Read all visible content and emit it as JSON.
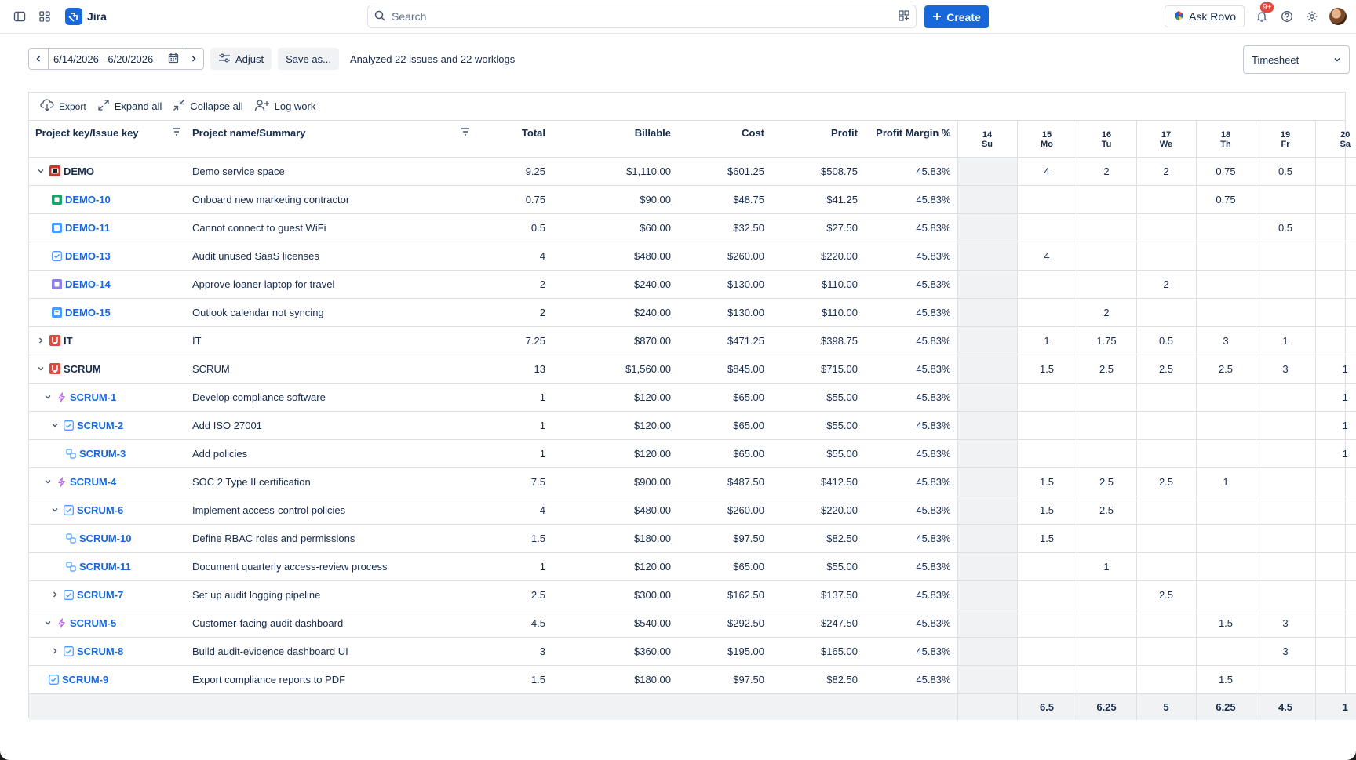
{
  "app": {
    "name": "Jira"
  },
  "search": {
    "placeholder": "Search"
  },
  "nav": {
    "create_label": "Create",
    "rovo_label": "Ask Rovo",
    "notif_badge": "9+"
  },
  "toolbar": {
    "date_range": "6/14/2026 - 6/20/2026",
    "adjust_label": "Adjust",
    "save_label": "Save as...",
    "status": "Analyzed 22 issues and 22 worklogs",
    "view_value": "Timesheet"
  },
  "grid_tools": {
    "export": "Export",
    "expand": "Expand all",
    "collapse": "Collapse all",
    "log": "Log work"
  },
  "columns": {
    "key": "Project key/Issue key",
    "name": "Project name/Summary",
    "total": "Total",
    "billable": "Billable",
    "cost": "Cost",
    "profit": "Profit",
    "margin": "Profit Margin %",
    "days": [
      {
        "num": "14",
        "dow": "Su"
      },
      {
        "num": "15",
        "dow": "Mo"
      },
      {
        "num": "16",
        "dow": "Tu"
      },
      {
        "num": "17",
        "dow": "We"
      },
      {
        "num": "18",
        "dow": "Th"
      },
      {
        "num": "19",
        "dow": "Fr"
      },
      {
        "num": "20",
        "dow": "Sa"
      }
    ]
  },
  "rows": [
    {
      "key": "DEMO",
      "name": "Demo service space",
      "total": "9.25",
      "billable": "$1,110.00",
      "cost": "$601.25",
      "profit": "$508.75",
      "margin": "45.83%",
      "days": [
        "",
        "4",
        "2",
        "2",
        "0.75",
        "0.5",
        ""
      ]
    },
    {
      "key": "DEMO-10",
      "name": "Onboard new marketing contractor",
      "total": "0.75",
      "billable": "$90.00",
      "cost": "$48.75",
      "profit": "$41.25",
      "margin": "45.83%",
      "days": [
        "",
        "",
        "",
        "",
        "0.75",
        "",
        ""
      ]
    },
    {
      "key": "DEMO-11",
      "name": "Cannot connect to guest WiFi",
      "total": "0.5",
      "billable": "$60.00",
      "cost": "$32.50",
      "profit": "$27.50",
      "margin": "45.83%",
      "days": [
        "",
        "",
        "",
        "",
        "",
        "0.5",
        ""
      ]
    },
    {
      "key": "DEMO-13",
      "name": "Audit unused SaaS licenses",
      "total": "4",
      "billable": "$480.00",
      "cost": "$260.00",
      "profit": "$220.00",
      "margin": "45.83%",
      "days": [
        "",
        "4",
        "",
        "",
        "",
        "",
        ""
      ]
    },
    {
      "key": "DEMO-14",
      "name": "Approve loaner laptop for travel",
      "total": "2",
      "billable": "$240.00",
      "cost": "$130.00",
      "profit": "$110.00",
      "margin": "45.83%",
      "days": [
        "",
        "",
        "",
        "2",
        "",
        "",
        ""
      ]
    },
    {
      "key": "DEMO-15",
      "name": "Outlook calendar not syncing",
      "total": "2",
      "billable": "$240.00",
      "cost": "$130.00",
      "profit": "$110.00",
      "margin": "45.83%",
      "days": [
        "",
        "",
        "2",
        "",
        "",
        "",
        ""
      ]
    },
    {
      "key": "IT",
      "name": "IT",
      "total": "7.25",
      "billable": "$870.00",
      "cost": "$471.25",
      "profit": "$398.75",
      "margin": "45.83%",
      "days": [
        "",
        "1",
        "1.75",
        "0.5",
        "3",
        "1",
        ""
      ]
    },
    {
      "key": "SCRUM",
      "name": "SCRUM",
      "total": "13",
      "billable": "$1,560.00",
      "cost": "$845.00",
      "profit": "$715.00",
      "margin": "45.83%",
      "days": [
        "",
        "1.5",
        "2.5",
        "2.5",
        "2.5",
        "3",
        "1"
      ]
    },
    {
      "key": "SCRUM-1",
      "name": "Develop compliance software",
      "total": "1",
      "billable": "$120.00",
      "cost": "$65.00",
      "profit": "$55.00",
      "margin": "45.83%",
      "days": [
        "",
        "",
        "",
        "",
        "",
        "",
        "1"
      ]
    },
    {
      "key": "SCRUM-2",
      "name": "Add ISO 27001",
      "total": "1",
      "billable": "$120.00",
      "cost": "$65.00",
      "profit": "$55.00",
      "margin": "45.83%",
      "days": [
        "",
        "",
        "",
        "",
        "",
        "",
        "1"
      ]
    },
    {
      "key": "SCRUM-3",
      "name": "Add policies",
      "total": "1",
      "billable": "$120.00",
      "cost": "$65.00",
      "profit": "$55.00",
      "margin": "45.83%",
      "days": [
        "",
        "",
        "",
        "",
        "",
        "",
        "1"
      ]
    },
    {
      "key": "SCRUM-4",
      "name": "SOC 2 Type II certification",
      "total": "7.5",
      "billable": "$900.00",
      "cost": "$487.50",
      "profit": "$412.50",
      "margin": "45.83%",
      "days": [
        "",
        "1.5",
        "2.5",
        "2.5",
        "1",
        "",
        ""
      ]
    },
    {
      "key": "SCRUM-6",
      "name": "Implement access-control policies",
      "total": "4",
      "billable": "$480.00",
      "cost": "$260.00",
      "profit": "$220.00",
      "margin": "45.83%",
      "days": [
        "",
        "1.5",
        "2.5",
        "",
        "",
        "",
        ""
      ]
    },
    {
      "key": "SCRUM-10",
      "name": "Define RBAC roles and permissions",
      "total": "1.5",
      "billable": "$180.00",
      "cost": "$97.50",
      "profit": "$82.50",
      "margin": "45.83%",
      "days": [
        "",
        "1.5",
        "",
        "",
        "",
        "",
        ""
      ]
    },
    {
      "key": "SCRUM-11",
      "name": "Document quarterly access-review process",
      "total": "1",
      "billable": "$120.00",
      "cost": "$65.00",
      "profit": "$55.00",
      "margin": "45.83%",
      "days": [
        "",
        "",
        "1",
        "",
        "",
        "",
        ""
      ]
    },
    {
      "key": "SCRUM-7",
      "name": "Set up audit logging pipeline",
      "total": "2.5",
      "billable": "$300.00",
      "cost": "$162.50",
      "profit": "$137.50",
      "margin": "45.83%",
      "days": [
        "",
        "",
        "",
        "2.5",
        "",
        "",
        ""
      ]
    },
    {
      "key": "SCRUM-5",
      "name": "Customer-facing audit dashboard",
      "total": "4.5",
      "billable": "$540.00",
      "cost": "$292.50",
      "profit": "$247.50",
      "margin": "45.83%",
      "days": [
        "",
        "",
        "",
        "",
        "1.5",
        "3",
        ""
      ]
    },
    {
      "key": "SCRUM-8",
      "name": "Build audit-evidence dashboard UI",
      "total": "3",
      "billable": "$360.00",
      "cost": "$195.00",
      "profit": "$165.00",
      "margin": "45.83%",
      "days": [
        "",
        "",
        "",
        "",
        "",
        "3",
        ""
      ]
    },
    {
      "key": "SCRUM-9",
      "name": "Export compliance reports to PDF",
      "total": "1.5",
      "billable": "$180.00",
      "cost": "$97.50",
      "profit": "$82.50",
      "margin": "45.83%",
      "days": [
        "",
        "",
        "",
        "",
        "1.5",
        "",
        ""
      ]
    }
  ],
  "footer_totals": [
    "",
    "6.5",
    "6.25",
    "5",
    "6.25",
    "4.5",
    "1"
  ]
}
